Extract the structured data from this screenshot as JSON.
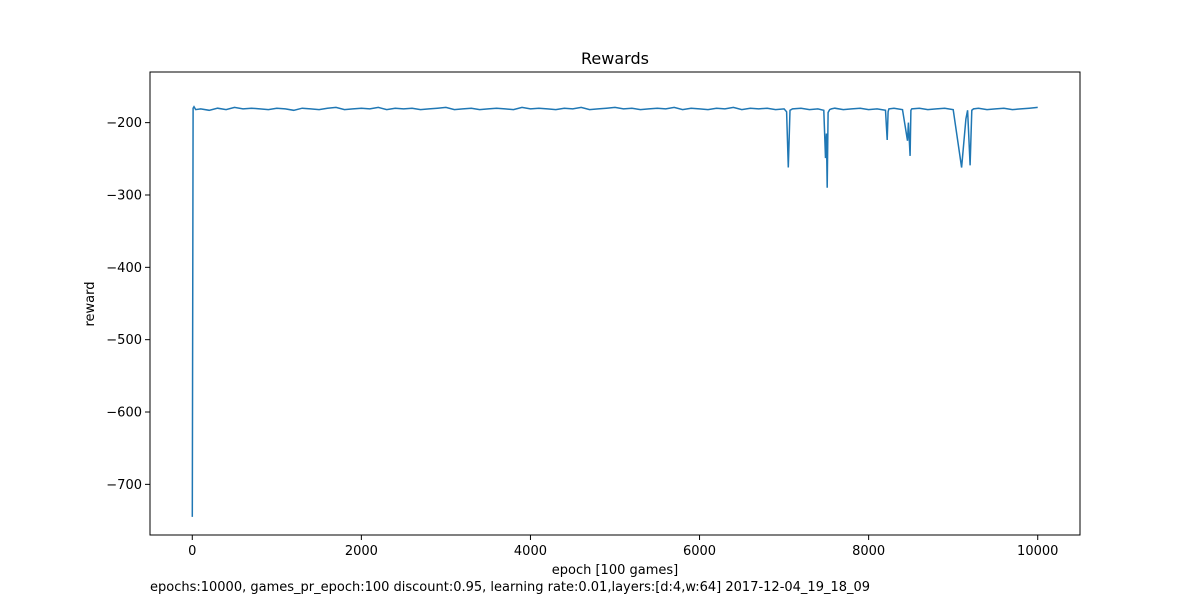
{
  "chart_data": {
    "type": "line",
    "title": "Rewards",
    "xlabel": "epoch [100 games]",
    "ylabel": "reward",
    "xlim": [
      -500,
      10500
    ],
    "ylim": [
      -770,
      -130
    ],
    "x_ticks": [
      0,
      2000,
      4000,
      6000,
      8000,
      10000
    ],
    "x_tick_labels": [
      "0",
      "2000",
      "4000",
      "6000",
      "8000",
      "10000"
    ],
    "y_ticks": [
      -200,
      -300,
      -400,
      -500,
      -600,
      -700
    ],
    "y_tick_labels": [
      "−200",
      "−300",
      "−400",
      "−500",
      "−600",
      "−700"
    ],
    "grid": false,
    "line_color": "#1f77b4",
    "series": [
      {
        "x": [
          0,
          10,
          20,
          40,
          100,
          200,
          300,
          400,
          500,
          600,
          700,
          800,
          900,
          1000,
          1100,
          1200,
          1300,
          1400,
          1500,
          1600,
          1700,
          1800,
          1900,
          2000,
          2100,
          2200,
          2300,
          2400,
          2500,
          2600,
          2700,
          2800,
          2900,
          3000,
          3100,
          3200,
          3300,
          3400,
          3500,
          3600,
          3700,
          3800,
          3900,
          4000,
          4100,
          4200,
          4300,
          4400,
          4500,
          4600,
          4700,
          4800,
          4900,
          5000,
          5100,
          5200,
          5300,
          5400,
          5500,
          5600,
          5700,
          5800,
          5900,
          6000,
          6100,
          6200,
          6300,
          6400,
          6500,
          6600,
          6700,
          6800,
          6900,
          7000,
          7030,
          7050,
          7070,
          7100,
          7200,
          7300,
          7400,
          7470,
          7490,
          7500,
          7510,
          7520,
          7540,
          7560,
          7600,
          7700,
          7800,
          7900,
          8000,
          8100,
          8200,
          8220,
          8230,
          8240,
          8300,
          8400,
          8460,
          8470,
          8490,
          8500,
          8510,
          8600,
          8700,
          8800,
          8900,
          9000,
          9100,
          9150,
          9170,
          9200,
          9220,
          9240,
          9300,
          9400,
          9500,
          9600,
          9700,
          9800,
          9900,
          10000
        ],
        "values": [
          -745,
          -180,
          -178,
          -182,
          -181,
          -183,
          -180,
          -182,
          -179,
          -181,
          -180,
          -181,
          -182,
          -180,
          -181,
          -183,
          -180,
          -181,
          -182,
          -180,
          -179,
          -182,
          -181,
          -180,
          -181,
          -179,
          -182,
          -180,
          -181,
          -180,
          -182,
          -181,
          -180,
          -179,
          -182,
          -181,
          -180,
          -182,
          -181,
          -180,
          -181,
          -182,
          -179,
          -181,
          -180,
          -181,
          -182,
          -180,
          -181,
          -179,
          -182,
          -181,
          -180,
          -179,
          -181,
          -180,
          -182,
          -181,
          -180,
          -181,
          -179,
          -182,
          -180,
          -181,
          -182,
          -180,
          -181,
          -179,
          -182,
          -180,
          -181,
          -180,
          -182,
          -181,
          -185,
          -262,
          -183,
          -181,
          -180,
          -182,
          -181,
          -183,
          -249,
          -215,
          -290,
          -186,
          -182,
          -181,
          -180,
          -182,
          -181,
          -180,
          -182,
          -181,
          -183,
          -224,
          -185,
          -181,
          -180,
          -182,
          -225,
          -200,
          -246,
          -183,
          -181,
          -180,
          -182,
          -181,
          -180,
          -182,
          -262,
          -195,
          -183,
          -259,
          -183,
          -181,
          -180,
          -182,
          -181,
          -180,
          -182,
          -181,
          -180,
          -179
        ]
      }
    ]
  },
  "caption": "epochs:10000, games_pr_epoch:100 discount:0.95, learning rate:0.01,layers:[d:4,w:64] 2017-12-04_19_18_09"
}
